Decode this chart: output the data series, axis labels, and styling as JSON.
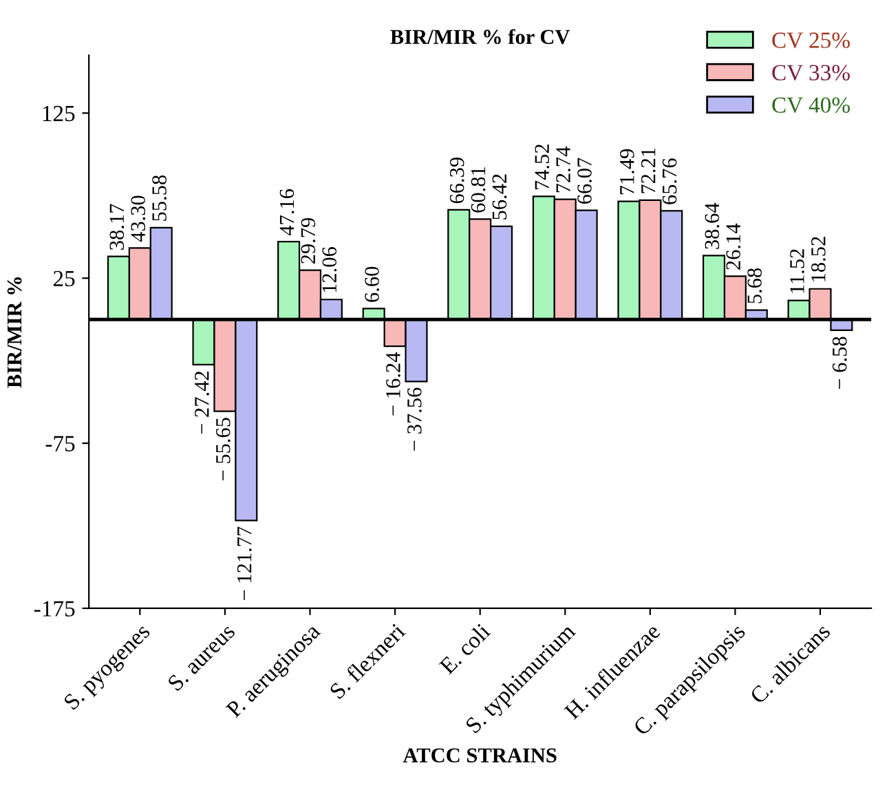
{
  "chart_data": {
    "type": "bar",
    "title": "BIR/MIR % for CV",
    "xlabel": "ATCC STRAINS",
    "ylabel": "BIR/MIR %",
    "categories": [
      "S. pyogenes",
      "S. aureus",
      "P. aeruginosa",
      "S. flexneri",
      "E. coli",
      "S. typhimurium",
      "H. influenzae",
      "C. parapsilopsis",
      "C. albicans"
    ],
    "series": [
      {
        "name": "CV 25%",
        "color": "#a8f5bc",
        "values": [
          38.17,
          -27.42,
          47.16,
          6.6,
          66.39,
          74.52,
          71.49,
          38.64,
          11.52
        ],
        "value_labels": [
          "38.17",
          "− 27.42",
          "47.16",
          "6.60",
          "66.39",
          "74.52",
          "71.49",
          "38.64",
          "11.52"
        ]
      },
      {
        "name": "CV 33%",
        "color": "#f8b8b8",
        "values": [
          43.3,
          -55.65,
          29.79,
          -16.24,
          60.81,
          72.74,
          72.21,
          26.14,
          18.52
        ],
        "value_labels": [
          "43.30",
          "− 55.65",
          "29.79",
          "− 16.24",
          "60.81",
          "72.74",
          "72.21",
          "26.14",
          "18.52"
        ]
      },
      {
        "name": "CV 40%",
        "color": "#b8b8f2",
        "values": [
          55.58,
          -121.77,
          12.06,
          -37.56,
          56.42,
          66.07,
          65.76,
          5.68,
          -6.58
        ],
        "value_labels": [
          "55.58",
          "− 121.77",
          "12.06",
          "− 37.56",
          "56.42",
          "66.07",
          "65.76",
          "5.68",
          "− 6.58"
        ]
      }
    ],
    "ylim": [
      -175,
      160
    ],
    "yticks": [
      -175,
      -75,
      25,
      125
    ],
    "ref_lines": [
      {
        "axis": "y",
        "value": 0
      }
    ],
    "legend": "top right",
    "grid": false
  }
}
